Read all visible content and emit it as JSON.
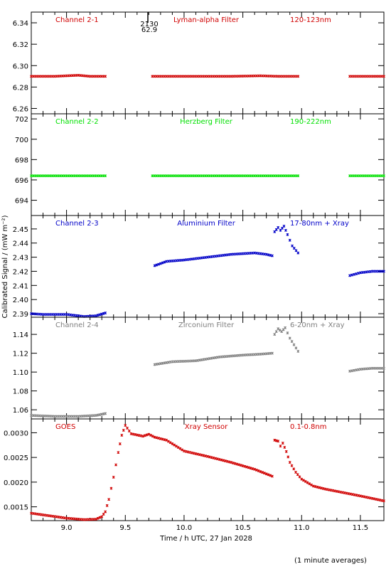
{
  "figure": {
    "ylabel": "Calibrated Signal / (mW m⁻²)",
    "xlabel": "Time / h UTC, 27 Jan 2028",
    "footnote": "(1 minute averages)",
    "marker": {
      "time_label": "2130",
      "value_label": "62.9",
      "x": 9.72
    }
  },
  "chart_data": [
    {
      "type": "scatter",
      "title": "Channel 2-1",
      "filter": "Lyman-alpha Filter",
      "band": "120-123nm",
      "color": "#d00000",
      "ylim": [
        6.255,
        6.35
      ],
      "yticks": [
        6.26,
        6.28,
        6.3,
        6.32,
        6.34
      ],
      "ytick_labels": [
        "6.26",
        "6.28",
        "6.30",
        "6.32",
        "6.34"
      ],
      "segments": [
        {
          "x": [
            8.7,
            8.9,
            9.1,
            9.2,
            9.33
          ],
          "y": [
            6.29,
            6.29,
            6.291,
            6.29,
            6.29
          ]
        },
        {
          "x": [
            9.73,
            10.0,
            10.4,
            10.65,
            10.8,
            10.97
          ],
          "y": [
            6.29,
            6.29,
            6.29,
            6.2905,
            6.29,
            6.29
          ]
        },
        {
          "x": [
            11.41,
            11.6,
            11.7
          ],
          "y": [
            6.29,
            6.29,
            6.29
          ]
        }
      ]
    },
    {
      "type": "scatter",
      "title": "Channel 2-2",
      "filter": "Herzberg Filter",
      "band": "190-222nm",
      "color": "#00e000",
      "ylim": [
        692.5,
        702.5
      ],
      "yticks": [
        694,
        696,
        698,
        700,
        702
      ],
      "ytick_labels": [
        "694",
        "696",
        "698",
        "700",
        "702"
      ],
      "segments": [
        {
          "x": [
            8.7,
            9.0,
            9.33
          ],
          "y": [
            696.4,
            696.4,
            696.4
          ]
        },
        {
          "x": [
            9.73,
            10.2,
            10.6,
            10.97
          ],
          "y": [
            696.4,
            696.4,
            696.4,
            696.4
          ]
        },
        {
          "x": [
            11.41,
            11.7
          ],
          "y": [
            696.4,
            696.4
          ]
        }
      ]
    },
    {
      "type": "scatter",
      "title": "Channel 2-3",
      "filter": "Aluminium Filter",
      "band": "17-80nm + Xray",
      "color": "#0000c8",
      "ylim": [
        2.3875,
        2.4595
      ],
      "yticks": [
        2.39,
        2.4,
        2.41,
        2.42,
        2.43,
        2.44,
        2.45
      ],
      "ytick_labels": [
        "2.39",
        "2.40",
        "2.41",
        "2.42",
        "2.43",
        "2.44",
        "2.45"
      ],
      "segments": [
        {
          "x": [
            8.7,
            8.8,
            9.0,
            9.15,
            9.25,
            9.33
          ],
          "y": [
            2.39,
            2.3895,
            2.3895,
            2.388,
            2.3885,
            2.3905
          ]
        },
        {
          "x": [
            9.75,
            9.85,
            10.0,
            10.2,
            10.4,
            10.6,
            10.7,
            10.75
          ],
          "y": [
            2.424,
            2.427,
            2.428,
            2.43,
            2.432,
            2.433,
            2.432,
            2.431
          ]
        },
        {
          "x": [
            10.77,
            10.8,
            10.82,
            10.85,
            10.88,
            10.92,
            10.97
          ],
          "y": [
            2.448,
            2.451,
            2.449,
            2.452,
            2.446,
            2.438,
            2.433
          ]
        },
        {
          "x": [
            11.41,
            11.5,
            11.6,
            11.7
          ],
          "y": [
            2.417,
            2.419,
            2.42,
            2.42
          ]
        }
      ]
    },
    {
      "type": "scatter",
      "title": "Channel 2-4",
      "filter": "Zirconium Filter",
      "band": "6-20nm + Xray",
      "color": "#808080",
      "ylim": [
        1.0503,
        1.1582
      ],
      "yticks": [
        1.06,
        1.08,
        1.1,
        1.12,
        1.14
      ],
      "ytick_labels": [
        "1.06",
        "1.08",
        "1.10",
        "1.12",
        "1.14"
      ],
      "segments": [
        {
          "x": [
            8.7,
            8.9,
            9.1,
            9.25,
            9.33
          ],
          "y": [
            1.054,
            1.053,
            1.053,
            1.054,
            1.056
          ]
        },
        {
          "x": [
            9.75,
            9.9,
            10.1,
            10.3,
            10.5,
            10.65,
            10.75
          ],
          "y": [
            1.108,
            1.111,
            1.112,
            1.116,
            1.118,
            1.119,
            1.12
          ]
        },
        {
          "x": [
            10.77,
            10.8,
            10.83,
            10.86,
            10.9,
            10.97
          ],
          "y": [
            1.14,
            1.146,
            1.143,
            1.147,
            1.136,
            1.122
          ]
        },
        {
          "x": [
            11.41,
            11.5,
            11.6,
            11.7
          ],
          "y": [
            1.101,
            1.103,
            1.104,
            1.104
          ]
        }
      ]
    },
    {
      "type": "scatter",
      "title": "GOES",
      "filter": "Xray Sensor",
      "band": "0.1-0.8nm",
      "color": "#d00000",
      "ylim": [
        0.00122,
        0.00328
      ],
      "yticks": [
        0.0015,
        0.002,
        0.0025,
        0.003
      ],
      "ytick_labels": [
        "0.0015",
        "0.0020",
        "0.0025",
        "0.0030"
      ],
      "xlim": [
        8.7,
        11.7
      ],
      "xticks": [
        9.0,
        9.5,
        10.0,
        10.5,
        11.0,
        11.5
      ],
      "xtick_labels": [
        "9.0",
        "9.5",
        "10.0",
        "10.5",
        "11.0",
        "11.5"
      ],
      "segments": [
        {
          "x": [
            8.7,
            8.85,
            9.0,
            9.15,
            9.25,
            9.3,
            9.33,
            9.36,
            9.4,
            9.44,
            9.47,
            9.5,
            9.55,
            9.65,
            9.7,
            9.75,
            9.85,
            10.0,
            10.2,
            10.4,
            10.6,
            10.75
          ],
          "y": [
            0.00137,
            0.00132,
            0.00127,
            0.00124,
            0.00125,
            0.0013,
            0.0014,
            0.00165,
            0.0021,
            0.0026,
            0.00295,
            0.00315,
            0.00298,
            0.00293,
            0.00297,
            0.00291,
            0.00285,
            0.00263,
            0.00252,
            0.0024,
            0.00226,
            0.00212
          ]
        },
        {
          "x": [
            10.77,
            10.8,
            10.82,
            10.84,
            10.87,
            10.9,
            10.95,
            11.0,
            11.1,
            11.2,
            11.35,
            11.5,
            11.6,
            11.7
          ],
          "y": [
            0.00285,
            0.00283,
            0.00273,
            0.00279,
            0.00262,
            0.0024,
            0.0022,
            0.00206,
            0.00192,
            0.00186,
            0.00179,
            0.00172,
            0.00167,
            0.00162
          ]
        }
      ]
    }
  ]
}
